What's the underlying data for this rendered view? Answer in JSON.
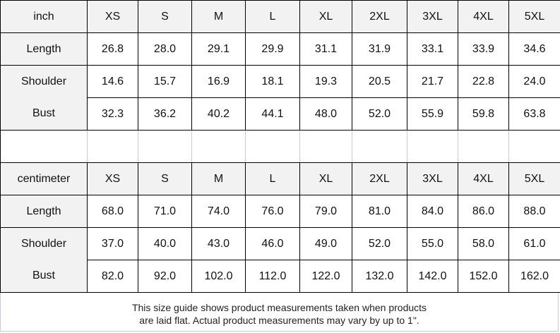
{
  "inch": {
    "unit": "inch",
    "sizes": [
      "XS",
      "S",
      "M",
      "L",
      "XL",
      "2XL",
      "3XL",
      "4XL",
      "5XL"
    ],
    "rows": [
      {
        "label": "Length",
        "values": [
          "26.8",
          "28.0",
          "29.1",
          "29.9",
          "31.1",
          "31.9",
          "33.1",
          "33.9",
          "34.6"
        ]
      },
      {
        "label": "Shoulder",
        "values": [
          "14.6",
          "15.7",
          "16.9",
          "18.1",
          "19.3",
          "20.5",
          "21.7",
          "22.8",
          "24.0"
        ]
      },
      {
        "label": "Bust",
        "values": [
          "32.3",
          "36.2",
          "40.2",
          "44.1",
          "48.0",
          "52.0",
          "55.9",
          "59.8",
          "63.8"
        ]
      }
    ]
  },
  "centimeter": {
    "unit": "centimeter",
    "sizes": [
      "XS",
      "S",
      "M",
      "L",
      "XL",
      "2XL",
      "3XL",
      "4XL",
      "5XL"
    ],
    "rows": [
      {
        "label": "Length",
        "values": [
          "68.0",
          "71.0",
          "74.0",
          "76.0",
          "79.0",
          "81.0",
          "84.0",
          "86.0",
          "88.0"
        ]
      },
      {
        "label": "Shoulder",
        "values": [
          "37.0",
          "40.0",
          "43.0",
          "46.0",
          "49.0",
          "52.0",
          "55.0",
          "58.0",
          "61.0"
        ]
      },
      {
        "label": "Bust",
        "values": [
          "82.0",
          "92.0",
          "102.0",
          "112.0",
          "122.0",
          "132.0",
          "142.0",
          "152.0",
          "162.0"
        ]
      }
    ]
  },
  "footer": {
    "line1": "This size guide shows product measurements taken when products",
    "line2": "are laid flat. Actual product measurements may vary by up to 1\"."
  }
}
